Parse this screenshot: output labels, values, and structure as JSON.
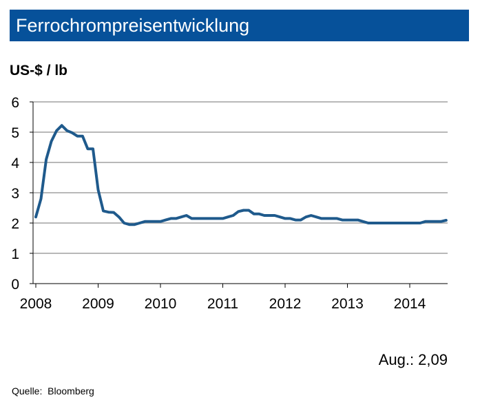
{
  "title": "Ferrochrompreisentwicklung",
  "unit_label": "US-$ / lb",
  "latest_note": "Aug.: 2,09",
  "source_label": "Quelle:",
  "source_name": "Bloomberg",
  "colors": {
    "title_bg": "#06519a",
    "line": "#1f5a8c",
    "grid": "#b8b8b8",
    "axis": "#000000"
  },
  "chart_data": {
    "type": "line",
    "title": "Ferrochrompreisentwicklung",
    "ylabel": "US-$ / lb",
    "xlabel": "",
    "ylim": [
      0,
      6
    ],
    "xlim": [
      "2008-01",
      "2014-08"
    ],
    "yticks": [
      "0",
      "1",
      "2",
      "3",
      "4",
      "5",
      "6"
    ],
    "xticks": [
      "2008",
      "2009",
      "2010",
      "2011",
      "2012",
      "2013",
      "2014"
    ],
    "grid": true,
    "legend": "none",
    "series": [
      {
        "x": [
          "2008-01",
          "2008-02",
          "2008-03",
          "2008-04",
          "2008-05",
          "2008-06",
          "2008-07",
          "2008-08",
          "2008-09",
          "2008-10",
          "2008-11",
          "2008-12",
          "2009-01",
          "2009-02",
          "2009-03",
          "2009-04",
          "2009-05",
          "2009-06",
          "2009-07",
          "2009-08",
          "2009-09",
          "2009-10",
          "2009-11",
          "2009-12",
          "2010-01",
          "2010-02",
          "2010-03",
          "2010-04",
          "2010-05",
          "2010-06",
          "2010-07",
          "2010-08",
          "2010-09",
          "2010-10",
          "2010-11",
          "2010-12",
          "2011-01",
          "2011-02",
          "2011-03",
          "2011-04",
          "2011-05",
          "2011-06",
          "2011-07",
          "2011-08",
          "2011-09",
          "2011-10",
          "2011-11",
          "2011-12",
          "2012-01",
          "2012-02",
          "2012-03",
          "2012-04",
          "2012-05",
          "2012-06",
          "2012-07",
          "2012-08",
          "2012-09",
          "2012-10",
          "2012-11",
          "2012-12",
          "2013-01",
          "2013-02",
          "2013-03",
          "2013-04",
          "2013-05",
          "2013-06",
          "2013-07",
          "2013-08",
          "2013-09",
          "2013-10",
          "2013-11",
          "2013-12",
          "2014-01",
          "2014-02",
          "2014-03",
          "2014-04",
          "2014-05",
          "2014-06",
          "2014-07",
          "2014-08"
        ],
        "y": [
          2.2,
          2.8,
          4.1,
          4.7,
          5.05,
          5.22,
          5.05,
          4.98,
          4.87,
          4.87,
          4.45,
          4.45,
          3.1,
          2.4,
          2.36,
          2.35,
          2.2,
          2.0,
          1.95,
          1.95,
          2.0,
          2.05,
          2.05,
          2.05,
          2.05,
          2.1,
          2.15,
          2.15,
          2.2,
          2.25,
          2.15,
          2.15,
          2.15,
          2.15,
          2.15,
          2.15,
          2.15,
          2.2,
          2.25,
          2.38,
          2.42,
          2.42,
          2.3,
          2.3,
          2.25,
          2.25,
          2.25,
          2.2,
          2.15,
          2.15,
          2.1,
          2.1,
          2.2,
          2.25,
          2.2,
          2.15,
          2.15,
          2.15,
          2.15,
          2.1,
          2.1,
          2.1,
          2.1,
          2.05,
          2.0,
          2.0,
          2.0,
          2.0,
          2.0,
          2.0,
          2.0,
          2.0,
          2.0,
          2.0,
          2.0,
          2.05,
          2.05,
          2.05,
          2.05,
          2.09
        ]
      }
    ]
  }
}
